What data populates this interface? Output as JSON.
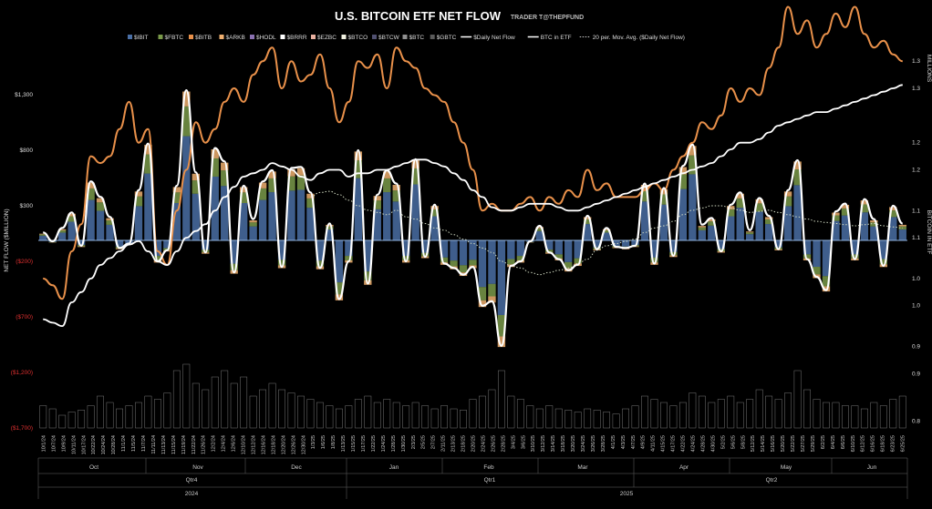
{
  "chart_data": {
    "type": "bar",
    "title": "U.S. BITCOIN ETF NET FLOW",
    "subtitle": "TRADER T@THEPFUND",
    "ylabel_left": "NET FLOW ($MILLION)",
    "ylabel_right": "BITCOIN IN ETF",
    "right_unit": "MILLIONS",
    "ylim_left": [
      -1700,
      1800
    ],
    "ylim_right": [
      0.8,
      1.38
    ],
    "y_ticks_left": [
      "$1,300",
      "$800",
      "$300",
      "($200)",
      "($700)",
      "($1,200)",
      "($1,700)"
    ],
    "y_ticks_left_values": [
      1300,
      800,
      300,
      -200,
      -700,
      -1200,
      -1700
    ],
    "y_ticks_right": [
      "1.3",
      "1.3",
      "1.2",
      "1.2",
      "1.1",
      "1.1",
      "1.0",
      "1.0",
      "0.9",
      "0.9",
      "0.8"
    ],
    "y_ticks_right_values": [
      1.34,
      1.3,
      1.22,
      1.18,
      1.12,
      1.08,
      1.02,
      0.98,
      0.92,
      0.88,
      0.81
    ],
    "legend": [
      {
        "label": "$IBIT",
        "type": "bar",
        "color": "#4a6fa5"
      },
      {
        "label": "$FBTC",
        "type": "bar",
        "color": "#7a9a4a"
      },
      {
        "label": "$BITB",
        "type": "bar",
        "color": "#e8904a"
      },
      {
        "label": "$ARKB",
        "type": "bar",
        "color": "#f0b070"
      },
      {
        "label": "$HODL",
        "type": "bar",
        "color": "#8a70b0"
      },
      {
        "label": "$BRRR",
        "type": "bar",
        "color": "#ffffff"
      },
      {
        "label": "$EZBC",
        "type": "bar",
        "color": "#e8b0a0"
      },
      {
        "label": "$BTCO",
        "type": "bar",
        "color": "#f0f0e0"
      },
      {
        "label": "$BTCW",
        "type": "bar",
        "color": "#505070"
      },
      {
        "label": "$BTC",
        "type": "bar",
        "color": "#909090"
      },
      {
        "label": "$GBTC",
        "type": "bar",
        "color": "#5a5a5a"
      },
      {
        "label": "$Daily Net Flow",
        "type": "line",
        "color": "#ffffff"
      },
      {
        "label": "BTC in ETF",
        "type": "line",
        "color": "#ffffff"
      },
      {
        "label": "20 per. Mov. Avg. ($Daily Net Flow)",
        "type": "dotted",
        "color": "#cccccc"
      }
    ],
    "x_dates": [
      "10/1/24",
      "10/3/24",
      "10/7/24",
      "10/9/24",
      "10/11/24",
      "10/15/24",
      "10/17/24",
      "10/21/24",
      "10/23/24",
      "10/25/24",
      "10/29/24",
      "10/31/24",
      "11/4/24",
      "11/6/24",
      "11/8/24",
      "11/12/24",
      "11/14/24",
      "11/18/24",
      "11/20/24",
      "11/22/24",
      "11/26/24",
      "11/29/24",
      "12/3/24",
      "12/5/24",
      "12/9/24",
      "12/11/24",
      "12/13/24",
      "12/17/24",
      "12/19/24",
      "12/23/24",
      "12/26/24",
      "12/30/24",
      "1/3/25",
      "1/7/25",
      "1/10/25",
      "1/14/25",
      "1/16/25",
      "1/21/25",
      "1/23/25",
      "1/27/25",
      "1/29/25",
      "1/31/25",
      "2/4/25",
      "2/6/25",
      "2/10/25",
      "2/12/25",
      "2/14/25",
      "2/19/25",
      "2/21/25",
      "2/25/25",
      "2/27/25",
      "3/3/25",
      "3/5/25",
      "3/7/25",
      "3/11/25",
      "3/13/25",
      "3/17/25",
      "3/19/25",
      "3/21/25",
      "3/25/25",
      "3/27/25",
      "3/31/25",
      "4/2/25",
      "4/4/25",
      "4/8/25",
      "4/10/25",
      "4/14/25",
      "4/16/25",
      "4/21/25",
      "4/23/25",
      "4/25/25",
      "4/29/25",
      "5/1/25",
      "5/5/25",
      "5/7/25",
      "5/9/25",
      "5/13/25",
      "5/15/25",
      "5/19/25",
      "5/21/25",
      "5/23/25",
      "5/28/25",
      "5/30/25",
      "6/3/25",
      "6/5/25",
      "6/9/25",
      "6/11/25",
      "6/13/25",
      "6/17/25",
      "6/20/25",
      "6/24/25"
    ],
    "x_labels": [
      "10/1/24",
      "10/7/24",
      "10/9/24",
      "10/11/24",
      "10/17/24",
      "10/22/24",
      "10/24/24",
      "10/28/24",
      "11/1/24",
      "11/5/24",
      "11/7/24",
      "11/11/24",
      "11/13/24",
      "11/15/24",
      "11/19/24",
      "11/22/24",
      "11/26/24",
      "12/2/24",
      "12/4/24",
      "12/6/24",
      "12/10/24",
      "12/12/24",
      "12/16/24",
      "12/18/24",
      "12/20/24",
      "12/26/24",
      "12/30/24",
      "1/3/25",
      "1/6/25",
      "1/8/25",
      "1/13/25",
      "1/15/25",
      "1/17/25",
      "1/22/25",
      "1/24/25",
      "1/28/25",
      "1/30/25",
      "2/3/25",
      "2/5/25",
      "2/7/25",
      "2/11/25",
      "2/13/25",
      "2/18/25",
      "2/20/25",
      "2/24/25",
      "2/26/25",
      "2/28/25",
      "3/4/25",
      "3/6/25",
      "3/10/25",
      "3/12/25",
      "3/14/25",
      "3/18/25",
      "3/20/25",
      "3/24/25",
      "3/26/25",
      "3/28/25",
      "4/1/25",
      "4/3/25",
      "4/7/25",
      "4/9/25",
      "4/11/25",
      "4/15/25",
      "4/17/25",
      "4/22/25",
      "4/24/25",
      "4/28/25",
      "4/30/25",
      "5/2/25",
      "5/6/25",
      "5/8/25",
      "5/12/25",
      "5/14/25",
      "5/16/25",
      "5/20/25",
      "5/22/25",
      "5/27/25",
      "5/29/25",
      "6/2/25",
      "6/4/25",
      "6/6/25",
      "6/10/25",
      "6/12/25",
      "6/16/25",
      "6/18/25",
      "6/23/25",
      "6/25/25"
    ],
    "months": [
      "Oct",
      "Nov",
      "Dec",
      "Jan",
      "Feb",
      "Mar",
      "Apr",
      "May",
      "Jun"
    ],
    "quarters": [
      "Qtr4",
      "Qtr1",
      "Qtr2"
    ],
    "years": [
      "2024",
      "2025"
    ],
    "daily_net_flow": [
      60,
      -20,
      100,
      240,
      -60,
      520,
      380,
      200,
      -80,
      -40,
      440,
      860,
      -200,
      -100,
      480,
      1340,
      600,
      -120,
      820,
      700,
      -300,
      480,
      180,
      520,
      620,
      -250,
      640,
      650,
      420,
      -260,
      140,
      -540,
      -200,
      800,
      -400,
      400,
      620,
      500,
      -200,
      720,
      -160,
      310,
      -220,
      -260,
      -320,
      -250,
      -600,
      -560,
      -960,
      -240,
      -200,
      -20,
      120,
      -120,
      -180,
      -280,
      -230,
      210,
      -90,
      100,
      -70,
      -80,
      -60,
      500,
      -220,
      460,
      -150,
      660,
      850,
      130,
      190,
      -110,
      310,
      420,
      80,
      370,
      210,
      -90,
      440,
      710,
      -180,
      -340,
      -460,
      250,
      320,
      -180,
      360,
      180,
      -240,
      300,
      140
    ],
    "btc_in_etf": [
      0.96,
      0.955,
      0.95,
      0.985,
      1.0,
      1.02,
      1.04,
      1.05,
      1.06,
      1.07,
      1.075,
      1.06,
      1.045,
      1.04,
      1.06,
      1.08,
      1.09,
      1.1,
      1.12,
      1.14,
      1.155,
      1.17,
      1.175,
      1.18,
      1.19,
      1.185,
      1.18,
      1.17,
      1.165,
      1.175,
      1.18,
      1.18,
      1.17,
      1.175,
      1.175,
      1.18,
      1.18,
      1.185,
      1.19,
      1.195,
      1.195,
      1.19,
      1.185,
      1.175,
      1.165,
      1.15,
      1.14,
      1.125,
      1.12,
      1.12,
      1.125,
      1.13,
      1.13,
      1.13,
      1.125,
      1.12,
      1.12,
      1.125,
      1.13,
      1.135,
      1.14,
      1.145,
      1.15,
      1.155,
      1.16,
      1.165,
      1.17,
      1.175,
      1.18,
      1.185,
      1.19,
      1.2,
      1.21,
      1.22,
      1.22,
      1.225,
      1.235,
      1.245,
      1.25,
      1.255,
      1.26,
      1.265,
      1.265,
      1.27,
      1.275,
      1.28,
      1.285,
      1.29,
      1.295,
      1.3,
      1.305
    ],
    "bitb_series": [
      1.02,
      1.01,
      0.99,
      1.06,
      1.1,
      1.2,
      1.19,
      1.2,
      1.24,
      1.28,
      1.22,
      1.24,
      1.06,
      1.04,
      1.12,
      1.18,
      1.25,
      1.22,
      1.24,
      1.28,
      1.3,
      1.28,
      1.32,
      1.34,
      1.36,
      1.3,
      1.34,
      1.31,
      1.32,
      1.35,
      1.3,
      1.25,
      1.28,
      1.34,
      1.33,
      1.35,
      1.3,
      1.36,
      1.34,
      1.33,
      1.3,
      1.29,
      1.28,
      1.25,
      1.22,
      1.18,
      1.12,
      1.13,
      1.12,
      1.12,
      1.13,
      1.14,
      1.12,
      1.14,
      1.13,
      1.15,
      1.14,
      1.18,
      1.15,
      1.16,
      1.14,
      1.14,
      1.14,
      1.15,
      1.16,
      1.15,
      1.18,
      1.2,
      1.22,
      1.25,
      1.24,
      1.26,
      1.3,
      1.28,
      1.3,
      1.29,
      1.33,
      1.36,
      1.42,
      1.38,
      1.4,
      1.36,
      1.38,
      1.41,
      1.39,
      1.42,
      1.38,
      1.36,
      1.37,
      1.35,
      1.34
    ],
    "mov_avg_20": [
      -999,
      -999,
      -999,
      -999,
      -999,
      -999,
      -999,
      -999,
      -999,
      -999,
      -999,
      -999,
      -999,
      -999,
      -999,
      -999,
      -999,
      -999,
      -999,
      -999,
      -999,
      -999,
      -999,
      -999,
      -999,
      -999,
      -999,
      -999,
      380,
      420,
      430,
      400,
      350,
      300,
      260,
      240,
      220,
      260,
      200,
      180,
      140,
      100,
      80,
      40,
      0,
      -40,
      -80,
      -120,
      -200,
      -240,
      -260,
      -300,
      -320,
      -300,
      -280,
      -260,
      -220,
      -180,
      -100,
      -60,
      -40,
      -20,
      0,
      60,
      100,
      120,
      160,
      220,
      260,
      280,
      300,
      300,
      280,
      260,
      240,
      250,
      260,
      240,
      220,
      200,
      180,
      160,
      150,
      140,
      130,
      120,
      130,
      140,
      120,
      110,
      100
    ],
    "volume_bars": [
      0.35,
      0.3,
      0.2,
      0.25,
      0.28,
      0.35,
      0.5,
      0.4,
      0.3,
      0.35,
      0.4,
      0.5,
      0.45,
      0.55,
      0.9,
      1.0,
      0.7,
      0.6,
      0.8,
      0.9,
      0.7,
      0.8,
      0.5,
      0.6,
      0.7,
      0.6,
      0.55,
      0.5,
      0.45,
      0.4,
      0.35,
      0.3,
      0.35,
      0.45,
      0.5,
      0.4,
      0.45,
      0.4,
      0.35,
      0.4,
      0.35,
      0.3,
      0.35,
      0.3,
      0.28,
      0.45,
      0.5,
      0.6,
      0.9,
      0.5,
      0.45,
      0.35,
      0.3,
      0.35,
      0.3,
      0.28,
      0.25,
      0.3,
      0.28,
      0.25,
      0.22,
      0.3,
      0.35,
      0.5,
      0.45,
      0.4,
      0.35,
      0.4,
      0.55,
      0.5,
      0.4,
      0.45,
      0.5,
      0.4,
      0.45,
      0.6,
      0.5,
      0.45,
      0.55,
      0.9,
      0.6,
      0.45,
      0.4,
      0.4,
      0.35,
      0.35,
      0.3,
      0.4,
      0.35,
      0.45,
      0.5
    ],
    "grid": false
  }
}
